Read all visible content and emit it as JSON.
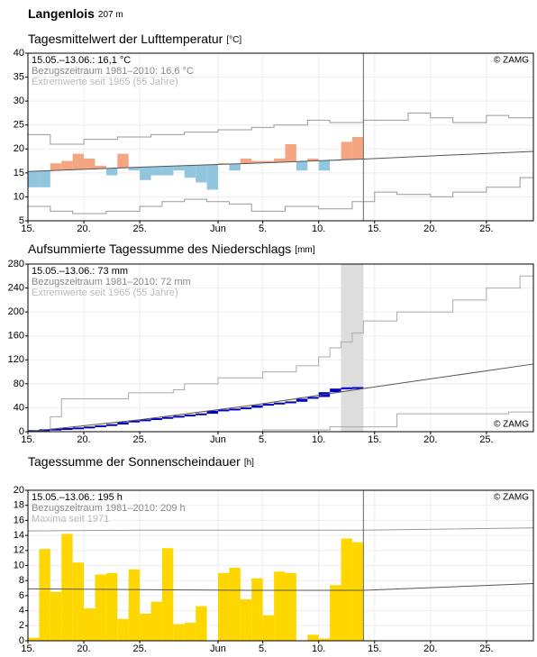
{
  "header": {
    "station": "Langenlois",
    "elevation": "207 m"
  },
  "chart_data": [
    {
      "type": "anomaly_bar",
      "title": "Tagesmittelwert der Lufttemperatur",
      "unit": "[°C]",
      "info": [
        "15.05.–13.06.: 16,1 °C",
        "Bezugszeitraum 1981–2010: 16,6 °C",
        "Extremwerte seit 1965 (55 Jahre)"
      ],
      "copyright": "© ZAMG",
      "copyright_position": "top",
      "xlim": [
        0,
        45.2
      ],
      "xticks": [
        {
          "value": 0,
          "label": "15."
        },
        {
          "value": 5,
          "label": "20."
        },
        {
          "value": 10,
          "label": "25."
        },
        {
          "value": 17,
          "label": "Jun"
        },
        {
          "value": 21,
          "label": "5."
        },
        {
          "value": 26,
          "label": "10."
        },
        {
          "value": 31,
          "label": "15."
        },
        {
          "value": 36,
          "label": "20."
        },
        {
          "value": 41,
          "label": "25."
        }
      ],
      "ylim": [
        5,
        40
      ],
      "yticks": [
        5,
        10,
        15,
        20,
        25,
        30,
        35,
        40
      ],
      "colors": {
        "above": "#f4a582",
        "below": "#92c5de",
        "mean": "#555555",
        "extreme": "#999999"
      },
      "x": [
        0,
        1,
        2,
        3,
        4,
        5,
        6,
        7,
        8,
        9,
        10,
        11,
        12,
        13,
        14,
        15,
        16,
        17,
        18,
        19,
        20,
        21,
        22,
        23,
        24,
        25,
        26,
        27,
        28,
        29
      ],
      "values": [
        12,
        12,
        17,
        17.5,
        19,
        18,
        16.5,
        14.5,
        19,
        15.5,
        13.5,
        14.5,
        14.5,
        15.5,
        14,
        13,
        11.5,
        17,
        15.5,
        18,
        17.5,
        17.5,
        18,
        21,
        15.5,
        18,
        15.5,
        17.5,
        21.5,
        22.5
      ],
      "mean": {
        "x": [
          0,
          10,
          20,
          30,
          45.2
        ],
        "values": [
          15.3,
          16.2,
          17,
          17.9,
          19.5
        ]
      },
      "upper": {
        "x": [
          0,
          2,
          5,
          8,
          11,
          14,
          17,
          20,
          22,
          25,
          27,
          30,
          34,
          36,
          38,
          41,
          43
        ],
        "values": [
          23,
          21,
          22,
          22.5,
          23,
          23.5,
          24,
          24.5,
          25,
          26,
          25.5,
          26,
          27.5,
          26.5,
          25.5,
          27,
          26.5
        ]
      },
      "lower": {
        "x": [
          0,
          2,
          4,
          7,
          10,
          12,
          14,
          16,
          18,
          20,
          23,
          26,
          29,
          31,
          33,
          36,
          38,
          41,
          44
        ],
        "values": [
          8,
          7,
          6.5,
          7,
          8,
          9,
          9.5,
          9,
          8.5,
          7,
          8,
          7.5,
          9,
          11,
          10.5,
          10,
          11,
          12,
          14
        ]
      }
    },
    {
      "type": "cumulative",
      "title": "Aufsummierte Tagessumme des Niederschlags",
      "unit": "[mm]",
      "info": [
        "15.05.–13.06.: 73 mm",
        "Bezugszeitraum 1981–2010: 72 mm",
        "Extremwerte seit 1965 (55 Jahre)"
      ],
      "copyright": "© ZAMG",
      "copyright_position": "bottom",
      "xlim": [
        0,
        45.2
      ],
      "xticks": [
        {
          "value": 0,
          "label": "15."
        },
        {
          "value": 5,
          "label": "20."
        },
        {
          "value": 10,
          "label": "25."
        },
        {
          "value": 17,
          "label": "Jun"
        },
        {
          "value": 21,
          "label": "5."
        },
        {
          "value": 26,
          "label": "10."
        },
        {
          "value": 31,
          "label": "15."
        },
        {
          "value": 36,
          "label": "20."
        },
        {
          "value": 41,
          "label": "25."
        }
      ],
      "ylim": [
        0,
        280
      ],
      "yticks": [
        0,
        40,
        80,
        120,
        160,
        200,
        240,
        280
      ],
      "colors": {
        "observed": "#0000cc",
        "deficit": "#fff5b0",
        "mean": "#555555",
        "extreme": "#aaaaaa",
        "band": "#dddddd"
      },
      "x": [
        0,
        1,
        2,
        3,
        4,
        5,
        6,
        7,
        8,
        9,
        10,
        11,
        12,
        13,
        14,
        15,
        16,
        17,
        18,
        19,
        20,
        21,
        22,
        23,
        24,
        25,
        26,
        27,
        28,
        29
      ],
      "values": [
        2,
        3,
        4,
        5,
        6,
        8,
        10,
        12,
        16,
        18,
        20,
        22,
        24,
        26,
        28,
        30,
        35,
        36,
        38,
        40,
        44,
        46,
        48,
        50,
        55,
        58,
        66,
        72,
        73,
        73
      ],
      "mean": {
        "x": [
          0,
          10,
          20,
          30,
          45.2
        ],
        "values": [
          0,
          20,
          44,
          72,
          113
        ]
      },
      "upper": {
        "x": [
          0,
          2,
          3,
          9,
          13,
          14,
          17,
          21,
          24,
          26,
          27,
          28,
          29,
          30,
          33,
          38,
          41,
          44
        ],
        "values": [
          0,
          25,
          55,
          65,
          70,
          80,
          90,
          100,
          110,
          125,
          140,
          150,
          165,
          185,
          200,
          220,
          240,
          260
        ]
      },
      "lower": {
        "x": [
          0,
          21,
          27,
          33,
          43
        ],
        "values": [
          0,
          3,
          8,
          30,
          33
        ]
      }
    },
    {
      "type": "bar",
      "title": "Tagessumme der Sonnenscheindauer",
      "unit": "[h]",
      "info": [
        "15.05.–13.06.: 195 h",
        "Bezugszeitraum 1981–2010: 209 h",
        "Maxima seit 1971"
      ],
      "copyright": "© ZAMG",
      "copyright_position": "top",
      "xlim": [
        0,
        45.2
      ],
      "xticks": [
        {
          "value": 0,
          "label": "15."
        },
        {
          "value": 5,
          "label": "20."
        },
        {
          "value": 10,
          "label": "25."
        },
        {
          "value": 17,
          "label": "Jun"
        },
        {
          "value": 21,
          "label": "5."
        },
        {
          "value": 26,
          "label": "10."
        },
        {
          "value": 31,
          "label": "15."
        },
        {
          "value": 36,
          "label": "20."
        },
        {
          "value": 41,
          "label": "25."
        }
      ],
      "ylim": [
        0,
        20
      ],
      "yticks": [
        0,
        2,
        4,
        6,
        8,
        10,
        12,
        14,
        16,
        18,
        20
      ],
      "colors": {
        "bar": "#ffd700",
        "mean": "#555555",
        "extreme": "#999999"
      },
      "x": [
        0,
        1,
        2,
        3,
        4,
        5,
        6,
        7,
        8,
        9,
        10,
        11,
        12,
        13,
        14,
        15,
        16,
        17,
        18,
        19,
        20,
        21,
        22,
        23,
        24,
        25,
        26,
        27,
        28,
        29
      ],
      "values": [
        0.4,
        12.2,
        6.5,
        14.2,
        10.4,
        4.3,
        8.8,
        9,
        2.9,
        9.5,
        3.6,
        5.2,
        12.3,
        2.2,
        2.4,
        4.6,
        0,
        9,
        9.7,
        5.5,
        8.3,
        3.4,
        9.2,
        9,
        0,
        0.8,
        0.3,
        7.4,
        13.6,
        13.1
      ],
      "mean": {
        "x": [
          0,
          10,
          20,
          30,
          45.2
        ],
        "values": [
          6.9,
          6.8,
          6.7,
          6.7,
          7.6
        ]
      },
      "max": {
        "x": [
          0,
          10,
          30,
          45.2
        ],
        "values": [
          14.6,
          14.7,
          14.7,
          15
        ]
      }
    }
  ]
}
